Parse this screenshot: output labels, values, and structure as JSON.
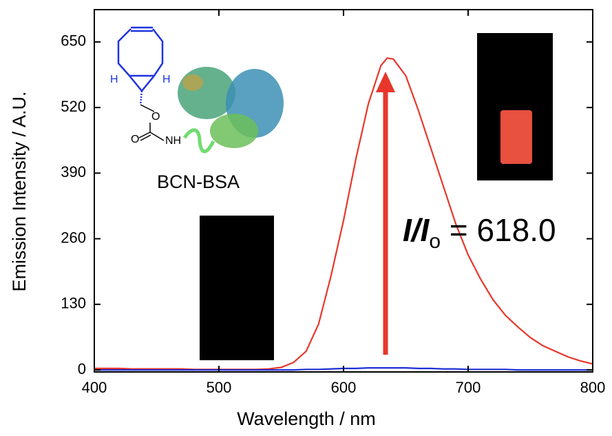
{
  "chart_data": {
    "type": "line",
    "x_label": "Wavelength / nm",
    "y_label": "Emission Intensity / A.U.",
    "x": [
      400,
      410,
      420,
      430,
      440,
      450,
      460,
      470,
      480,
      490,
      500,
      510,
      520,
      530,
      540,
      550,
      560,
      570,
      580,
      590,
      600,
      610,
      620,
      630,
      635,
      640,
      650,
      660,
      670,
      680,
      690,
      700,
      710,
      720,
      730,
      740,
      750,
      760,
      770,
      780,
      790,
      800
    ],
    "series": [
      {
        "color": "#e8362a",
        "values": [
          3,
          3,
          3,
          2,
          2,
          2,
          2,
          2,
          1,
          1,
          1,
          1,
          1,
          1,
          2,
          5,
          15,
          37,
          91,
          187,
          296,
          419,
          528,
          603,
          618,
          616,
          583,
          515,
          440,
          365,
          290,
          228,
          180,
          139,
          108,
          85,
          64,
          48,
          37,
          26,
          18,
          12
        ]
      },
      {
        "color": "#1f2fd6",
        "values": [
          0,
          0,
          0,
          0,
          0,
          0,
          0,
          0,
          0,
          0,
          0,
          0,
          0,
          0,
          0,
          0,
          0,
          1,
          1,
          2,
          3,
          3,
          4,
          4,
          4,
          4,
          4,
          3,
          3,
          2,
          2,
          1,
          1,
          1,
          1,
          0,
          0,
          0,
          0,
          0,
          0,
          0
        ]
      }
    ],
    "xlim": [
      400,
      800
    ],
    "xticks": [
      400,
      500,
      600,
      700,
      800
    ],
    "ylim": [
      -4,
      714
    ],
    "yticks": [
      0,
      130,
      260,
      390,
      520,
      650
    ],
    "annotation": [
      "I/I",
      "o",
      " = 618.0"
    ],
    "inset_label": "BCN-BSA",
    "atom_labels": [
      "H",
      "H",
      "O",
      "O",
      "NH"
    ]
  }
}
